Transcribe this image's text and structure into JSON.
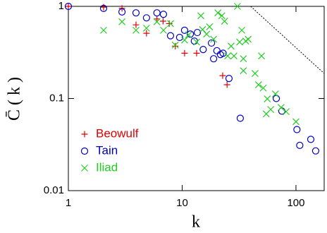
{
  "chart_data": {
    "type": "scatter",
    "x_label": "k",
    "y_label": "C̄ ( k )",
    "log_x": true,
    "log_y": true,
    "xlim": [
      1,
      177
    ],
    "ylim": [
      0.01,
      1
    ],
    "xticks": [
      1,
      10,
      100
    ],
    "yticks": [
      0.01,
      0.1,
      1
    ],
    "legend": "lower-left",
    "series": [
      {
        "name": "Beowulf",
        "color": "#e00000",
        "marker": "plus",
        "x": [
          1,
          2.04,
          2.96,
          3.93,
          4.86,
          6.0,
          6.8,
          7.7,
          8.7,
          10.5,
          13.4,
          22.7,
          24.8
        ],
        "values": [
          1,
          0.98,
          0.95,
          0.63,
          0.51,
          0.73,
          0.69,
          0.65,
          0.37,
          0.31,
          0.31,
          0.177,
          0.141
        ]
      },
      {
        "name": "Tain",
        "color": "#0000c0",
        "marker": "circle",
        "x": [
          1,
          2.04,
          2.96,
          3.93,
          4.86,
          6.0,
          6.85,
          7.9,
          9.5,
          10.5,
          11.8,
          12.8,
          13.6,
          15.3,
          18.1,
          18.9,
          20.2,
          21.7,
          22.9,
          25.8,
          32.4,
          67.2,
          75.2,
          102,
          108,
          135,
          149
        ],
        "values": [
          1,
          0.95,
          0.87,
          0.85,
          0.75,
          0.85,
          0.82,
          0.48,
          0.46,
          0.55,
          0.5,
          0.42,
          0.52,
          0.34,
          0.4,
          0.27,
          0.33,
          0.3,
          0.31,
          0.165,
          0.061,
          0.1,
          0.073,
          0.046,
          0.031,
          0.036,
          0.027
        ]
      },
      {
        "name": "Iliad",
        "color": "#22cc22",
        "marker": "cross",
        "x": [
          2.04,
          2.96,
          3.93,
          4.86,
          6,
          6.85,
          7.9,
          8.7,
          10.5,
          11.4,
          13.4,
          14.6,
          15.1,
          16.4,
          17.4,
          18.9,
          20.6,
          22.3,
          23.6,
          25.1,
          26.9,
          28.5,
          30.6,
          32,
          33.4,
          34.5,
          36.2,
          38,
          34.5,
          43.7,
          49.8,
          46.9,
          51.6,
          56,
          54.8,
          60,
          66,
          74,
          82,
          100
        ],
        "values": [
          0.55,
          0.68,
          0.55,
          0.58,
          0.68,
          0.55,
          0.65,
          0.38,
          0.43,
          0.49,
          0.41,
          0.79,
          0.56,
          0.5,
          0.6,
          0.44,
          0.85,
          0.79,
          0.69,
          0.29,
          0.37,
          0.29,
          1.0,
          0.41,
          0.55,
          0.27,
          0.42,
          0.44,
          0.2,
          0.187,
          0.29,
          0.141,
          0.13,
          0.099,
          0.068,
          0.076,
          0.112,
          0.08,
          0.072,
          0.056
        ]
      }
    ],
    "reference_line": {
      "x": [
        40,
        177
      ],
      "values": [
        1,
        0.187
      ],
      "color": "#000000",
      "dashed": true
    }
  }
}
